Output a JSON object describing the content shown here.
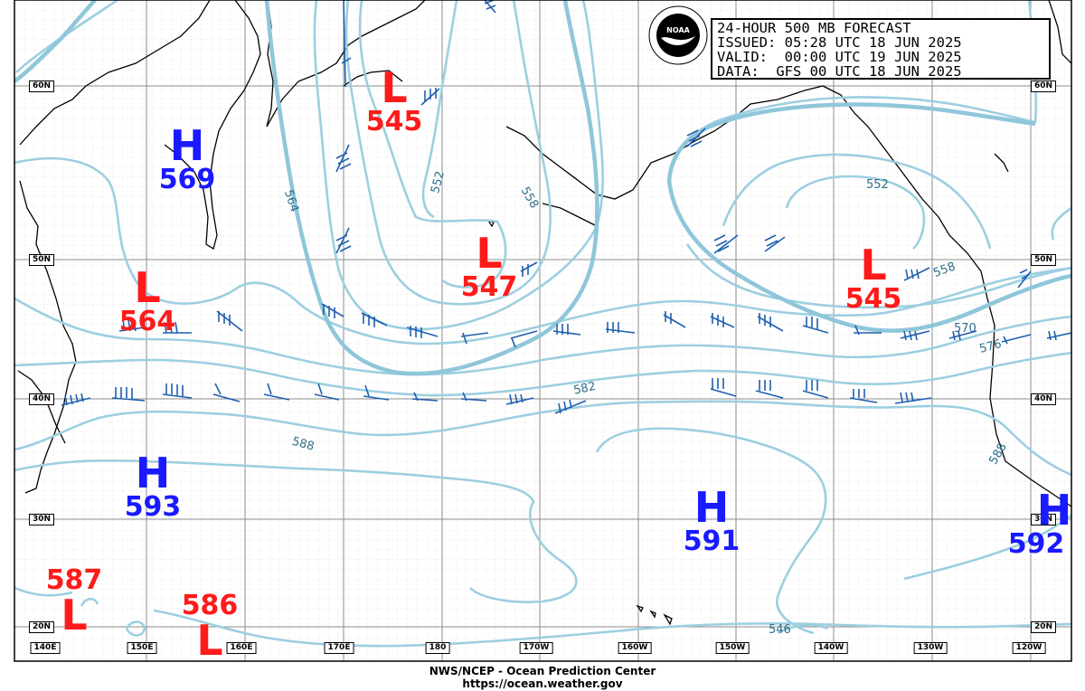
{
  "header": {
    "line1": "24-HOUR 500 MB FORECAST",
    "line2": "ISSUED: 05:28 UTC 18 JUN 2025",
    "line3": "VALID:  00:00 UTC 19 JUN 2025",
    "line4": "DATA:  GFS 00 UTC 18 JUN 2025"
  },
  "footer": {
    "agency": "NWS/NCEP - Ocean Prediction Center",
    "url": "https://ocean.weather.gov"
  },
  "pressure_systems": [
    {
      "type": "H",
      "value": "569"
    },
    {
      "type": "L",
      "value": "545"
    },
    {
      "type": "L",
      "value": "547"
    },
    {
      "type": "L",
      "value": "564"
    },
    {
      "type": "L",
      "value": "545"
    },
    {
      "type": "H",
      "value": "593"
    },
    {
      "type": "H",
      "value": "591"
    },
    {
      "type": "H",
      "value": "592"
    },
    {
      "type": "L",
      "value": "587"
    },
    {
      "type": "L",
      "value": "586"
    }
  ],
  "contour_labels": [
    "564",
    "552",
    "558",
    "552",
    "558",
    "570",
    "576",
    "582",
    "588",
    "588",
    "546"
  ],
  "lat_labels": [
    "60N",
    "50N",
    "40N",
    "30N",
    "20N"
  ],
  "lon_labels": [
    "140E",
    "150E",
    "160E",
    "170E",
    "180",
    "170W",
    "160W",
    "150W",
    "140W",
    "130W",
    "120W"
  ],
  "colors": {
    "high": "#1a1aff",
    "low": "#ff1a1a",
    "contour": "#9ccfe0",
    "wind_barb": "#1f5fb0",
    "coast": "#000000",
    "grid": "#bdbdbd"
  }
}
